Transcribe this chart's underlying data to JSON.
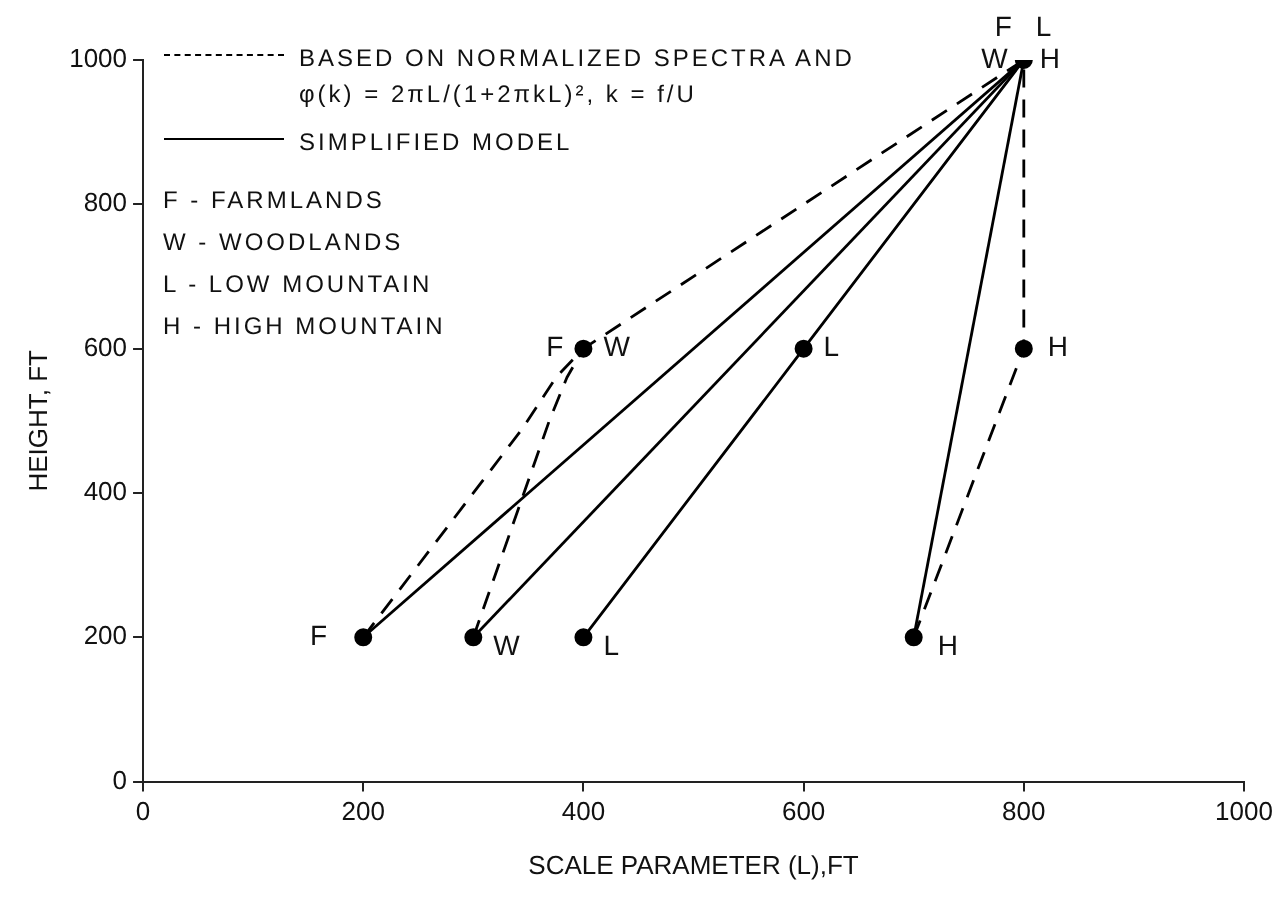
{
  "chart_data": {
    "type": "line",
    "xlabel": "SCALE PARAMETER (L),FT",
    "ylabel": "HEIGHT, FT",
    "xlim": [
      0,
      1000
    ],
    "xticks": [
      0,
      200,
      400,
      600,
      800,
      1000
    ],
    "ylim": [
      0,
      1000
    ],
    "yticks": [
      0,
      200,
      400,
      600,
      800,
      1000
    ],
    "grid": false,
    "legend": "top left",
    "series": [
      {
        "name": "BASED ON NORMALIZED SPECTRA AND φ(k) = 2πL/(1+2πkL)², k = f/U",
        "color": "#000000",
        "line_style": "dashed",
        "marker": "none",
        "x": [
          200,
          345,
          375,
          400,
          800
        ],
        "values": [
          200,
          490,
          560,
          600,
          1000
        ]
      },
      {
        "color": "#000000",
        "line_style": "dashed",
        "marker": "none",
        "x": [
          300,
          369,
          385,
          400
        ],
        "values": [
          200,
          500,
          560,
          600
        ]
      },
      {
        "color": "#000000",
        "line_style": "dashed",
        "marker": "none",
        "x": [
          700,
          800,
          800
        ],
        "values": [
          200,
          600,
          1000
        ]
      },
      {
        "name": "SIMPLIFIED MODEL",
        "color": "#000000",
        "line_style": "solid",
        "marker": "none",
        "x": [
          200,
          800
        ],
        "values": [
          200,
          1000
        ]
      },
      {
        "color": "#000000",
        "line_style": "solid",
        "marker": "none",
        "x": [
          300,
          800
        ],
        "values": [
          200,
          1000
        ]
      },
      {
        "color": "#000000",
        "line_style": "solid",
        "marker": "none",
        "x": [
          400,
          600,
          800
        ],
        "values": [
          200,
          600,
          1000
        ]
      },
      {
        "color": "#000000",
        "line_style": "solid",
        "marker": "none",
        "x": [
          700,
          800
        ],
        "values": [
          200,
          1000
        ]
      },
      {
        "type": "scatter",
        "color": "#000000",
        "marker": "circle",
        "x": [
          200,
          300,
          400,
          700,
          400,
          600,
          800,
          800
        ],
        "values": [
          200,
          200,
          200,
          200,
          600,
          600,
          600,
          1000
        ]
      }
    ],
    "annotations": [
      {
        "text": "F",
        "x": 200,
        "y": 200
      },
      {
        "text": "W",
        "x": 300,
        "y": 200
      },
      {
        "text": "L",
        "x": 400,
        "y": 200
      },
      {
        "text": "H",
        "x": 700,
        "y": 200
      },
      {
        "text": "F",
        "x": 400,
        "y": 600
      },
      {
        "text": "W",
        "x": 400,
        "y": 600
      },
      {
        "text": "L",
        "x": 600,
        "y": 600
      },
      {
        "text": "H",
        "x": 800,
        "y": 600
      },
      {
        "text": "F",
        "x": 800,
        "y": 1000
      },
      {
        "text": "L",
        "x": 800,
        "y": 1000
      },
      {
        "text": "W",
        "x": 800,
        "y": 1000
      },
      {
        "text": "H",
        "x": 800,
        "y": 1000
      },
      "F - FARMLANDS",
      "W - WOODLANDS",
      "L - LOW MOUNTAIN",
      "H - HIGH MOUNTAIN"
    ]
  }
}
